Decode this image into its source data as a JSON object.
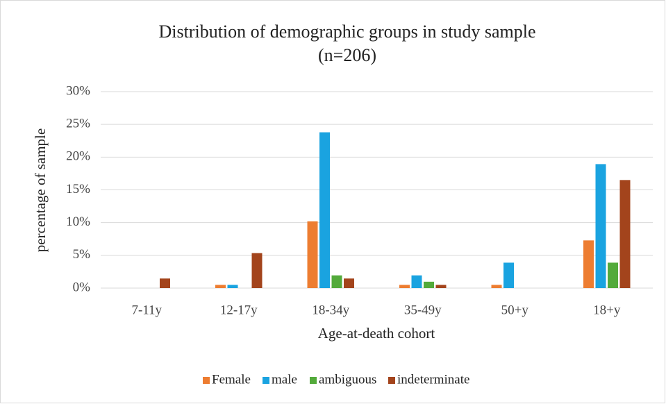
{
  "chart_data": {
    "type": "bar",
    "title": "Distribution of demographic groups in study sample",
    "subtitle": "(n=206)",
    "x_label": "Age-at-death cohort",
    "y_label": "percentage of sample",
    "categories": [
      "7-11y",
      "12-17y",
      "18-34y",
      "35-49y",
      "50+y",
      "18+y"
    ],
    "series": [
      {
        "name": "Female",
        "color": "#ed7d31",
        "values": [
          0,
          0.49,
          10.19,
          0.49,
          0.49,
          7.28
        ]
      },
      {
        "name": "male",
        "color": "#1aa3e0",
        "values": [
          0,
          0.49,
          23.79,
          1.94,
          3.88,
          18.93
        ]
      },
      {
        "name": "ambiguous",
        "color": "#53aa3b",
        "values": [
          0,
          0,
          1.94,
          0.97,
          0,
          3.88
        ]
      },
      {
        "name": "indeterminate",
        "color": "#a3441c",
        "values": [
          1.46,
          5.34,
          1.46,
          0.49,
          0,
          16.5
        ]
      }
    ],
    "ylim": [
      0,
      30
    ],
    "yticks": [
      {
        "value": 0,
        "label": "0%"
      },
      {
        "value": 5,
        "label": "5%"
      },
      {
        "value": 10,
        "label": "10%"
      },
      {
        "value": 15,
        "label": "15%"
      },
      {
        "value": 20,
        "label": "20%"
      },
      {
        "value": 25,
        "label": "25%"
      },
      {
        "value": 30,
        "label": "30%"
      }
    ],
    "grid": true,
    "legend": "bottom"
  }
}
